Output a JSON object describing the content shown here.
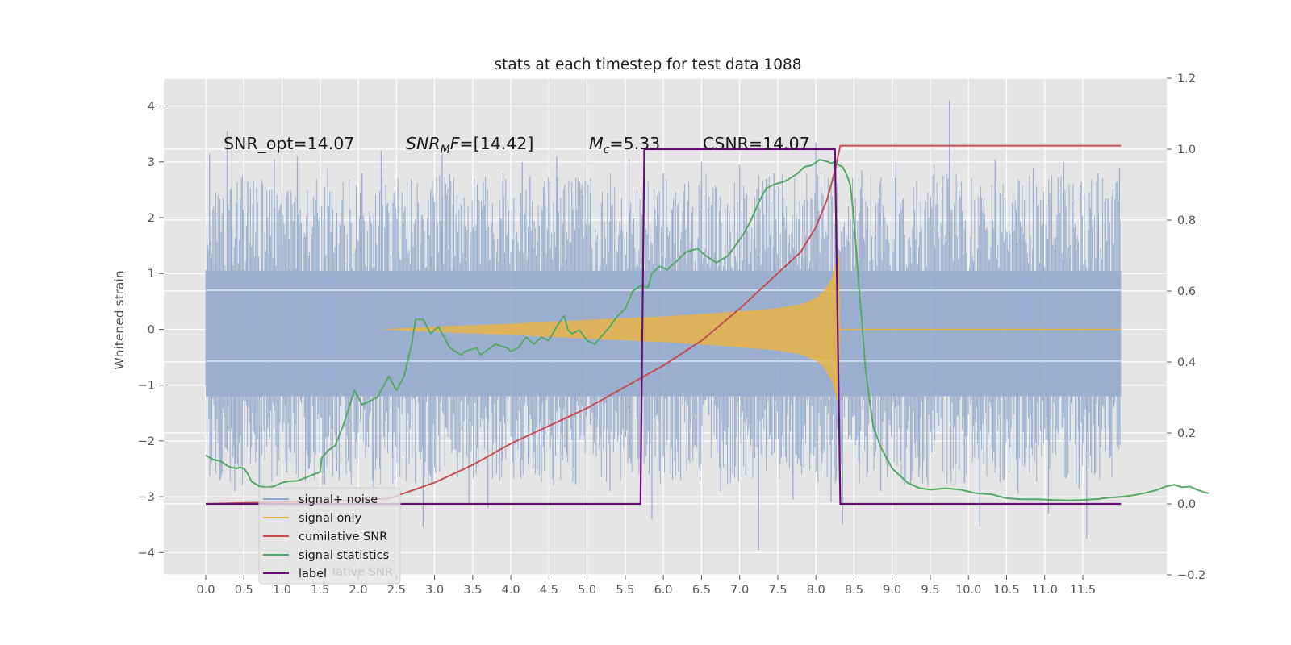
{
  "chart_data": {
    "type": "line",
    "title": "stats at each timestep for test data 1088",
    "ylabel": "Whitened strain",
    "xlim": [
      -0.55,
      12.6
    ],
    "ylim": [
      -4.4,
      4.5
    ],
    "y2lim": [
      -0.2,
      1.2
    ],
    "x_ticks": [
      "0.0",
      "0.5",
      "1.0",
      "1.5",
      "2.0",
      "2.5",
      "3.0",
      "3.5",
      "4.0",
      "4.5",
      "5.0",
      "5.5",
      "6.0",
      "6.5",
      "7.0",
      "7.5",
      "8.0",
      "8.5",
      "9.0",
      "9.5",
      "10.0",
      "10.5",
      "11.0",
      "11.5"
    ],
    "y_ticks": [
      "4",
      "3",
      "2",
      "1",
      "0",
      "−1",
      "−2",
      "−3",
      "−4"
    ],
    "y2_ticks": [
      "1.2",
      "1.0",
      "0.8",
      "0.6",
      "0.4",
      "0.2",
      "0.0",
      "−0.2"
    ],
    "grid": true,
    "legend_position": "lower-left",
    "colors": {
      "background": "#e5e5e5",
      "grid": "#ffffff",
      "noise": "#8fa6cc",
      "signal": "#e8b445",
      "cumulative_snr": "#c44e52",
      "signal_statistics": "#55a868",
      "label": "#6a0f7a"
    },
    "annotations": [
      {
        "text": "SNR_opt=14.07"
      },
      {
        "text_main": "SNR",
        "text_sub": "M",
        "text_rest": "F=[14.42]"
      },
      {
        "text_main": "M",
        "text_sub": "c",
        "text_rest": "=5.33"
      },
      {
        "text": "CSNR=14.07"
      }
    ],
    "noise_spikes": [
      [
        0.05,
        3.15
      ],
      [
        0.2,
        -2.6
      ],
      [
        0.28,
        3.55
      ],
      [
        0.38,
        -2.9
      ],
      [
        0.55,
        2.65
      ],
      [
        0.7,
        -2.85
      ],
      [
        0.9,
        3.05
      ],
      [
        1.05,
        -2.4
      ],
      [
        1.2,
        3.1
      ],
      [
        1.35,
        -2.5
      ],
      [
        1.6,
        2.9
      ],
      [
        1.75,
        -2.7
      ],
      [
        2.05,
        2.8
      ],
      [
        2.2,
        -3.05
      ],
      [
        2.3,
        3.2
      ],
      [
        2.45,
        -2.3
      ],
      [
        2.85,
        -3.55
      ],
      [
        2.95,
        2.5
      ],
      [
        3.1,
        3.15
      ],
      [
        3.3,
        -2.65
      ],
      [
        3.45,
        -3.15
      ],
      [
        3.7,
        -3.2
      ],
      [
        3.9,
        2.8
      ],
      [
        4.15,
        3.0
      ],
      [
        4.4,
        -2.6
      ],
      [
        4.6,
        3.1
      ],
      [
        4.85,
        -2.75
      ],
      [
        5.05,
        2.7
      ],
      [
        5.3,
        -2.9
      ],
      [
        5.55,
        3.05
      ],
      [
        5.85,
        -3.4
      ],
      [
        6.0,
        2.8
      ],
      [
        6.2,
        -2.55
      ],
      [
        6.5,
        3.0
      ],
      [
        6.75,
        -2.9
      ],
      [
        7.0,
        2.95
      ],
      [
        7.25,
        -3.95
      ],
      [
        7.45,
        2.8
      ],
      [
        7.7,
        -3.05
      ],
      [
        8.0,
        3.35
      ],
      [
        8.2,
        -3.1
      ],
      [
        8.35,
        -3.5
      ],
      [
        8.6,
        2.85
      ],
      [
        8.85,
        -2.9
      ],
      [
        9.05,
        3.0
      ],
      [
        9.35,
        -2.65
      ],
      [
        9.55,
        2.95
      ],
      [
        9.75,
        4.1
      ],
      [
        9.95,
        -2.75
      ],
      [
        10.15,
        -3.55
      ],
      [
        10.35,
        3.05
      ],
      [
        10.65,
        -2.95
      ],
      [
        10.85,
        2.9
      ],
      [
        11.05,
        -3.3
      ],
      [
        11.25,
        3.0
      ],
      [
        11.45,
        -2.85
      ],
      [
        11.55,
        -3.75
      ],
      [
        11.7,
        2.8
      ],
      [
        11.85,
        -2.3
      ],
      [
        11.98,
        2.9
      ]
    ],
    "signal_envelope": [
      [
        2.3,
        0.0
      ],
      [
        3.0,
        0.05
      ],
      [
        4.0,
        0.1
      ],
      [
        5.0,
        0.17
      ],
      [
        6.0,
        0.23
      ],
      [
        7.0,
        0.32
      ],
      [
        7.5,
        0.38
      ],
      [
        7.8,
        0.45
      ],
      [
        8.0,
        0.56
      ],
      [
        8.1,
        0.68
      ],
      [
        8.2,
        0.9
      ],
      [
        8.25,
        1.15
      ],
      [
        8.3,
        1.35
      ],
      [
        8.32,
        0.0
      ]
    ],
    "cumulative_snr": [
      [
        0.0,
        0.0
      ],
      [
        1.0,
        0.005
      ],
      [
        2.0,
        0.01
      ],
      [
        2.4,
        0.015
      ],
      [
        3.0,
        0.06
      ],
      [
        3.5,
        0.11
      ],
      [
        4.0,
        0.17
      ],
      [
        4.5,
        0.22
      ],
      [
        5.0,
        0.27
      ],
      [
        5.5,
        0.33
      ],
      [
        6.0,
        0.39
      ],
      [
        6.5,
        0.46
      ],
      [
        7.0,
        0.55
      ],
      [
        7.5,
        0.65
      ],
      [
        7.8,
        0.71
      ],
      [
        8.0,
        0.78
      ],
      [
        8.15,
        0.86
      ],
      [
        8.25,
        0.94
      ],
      [
        8.32,
        1.01
      ],
      [
        12.0,
        1.01
      ]
    ],
    "signal_statistics": [
      [
        0.0,
        0.137
      ],
      [
        0.1,
        0.125
      ],
      [
        0.2,
        0.12
      ],
      [
        0.3,
        0.105
      ],
      [
        0.4,
        0.1
      ],
      [
        0.45,
        0.103
      ],
      [
        0.5,
        0.1
      ],
      [
        0.55,
        0.085
      ],
      [
        0.6,
        0.063
      ],
      [
        0.7,
        0.05
      ],
      [
        0.8,
        0.047
      ],
      [
        0.9,
        0.05
      ],
      [
        1.0,
        0.06
      ],
      [
        1.1,
        0.064
      ],
      [
        1.2,
        0.065
      ],
      [
        1.3,
        0.073
      ],
      [
        1.4,
        0.082
      ],
      [
        1.5,
        0.09
      ],
      [
        1.52,
        0.13
      ],
      [
        1.6,
        0.15
      ],
      [
        1.7,
        0.165
      ],
      [
        1.8,
        0.22
      ],
      [
        1.95,
        0.32
      ],
      [
        2.05,
        0.28
      ],
      [
        2.15,
        0.29
      ],
      [
        2.25,
        0.3
      ],
      [
        2.4,
        0.36
      ],
      [
        2.5,
        0.32
      ],
      [
        2.6,
        0.36
      ],
      [
        2.7,
        0.45
      ],
      [
        2.75,
        0.52
      ],
      [
        2.85,
        0.52
      ],
      [
        2.95,
        0.48
      ],
      [
        3.05,
        0.5
      ],
      [
        3.2,
        0.44
      ],
      [
        3.35,
        0.42
      ],
      [
        3.4,
        0.43
      ],
      [
        3.55,
        0.44
      ],
      [
        3.6,
        0.42
      ],
      [
        3.8,
        0.45
      ],
      [
        3.95,
        0.44
      ],
      [
        4.0,
        0.43
      ],
      [
        4.1,
        0.44
      ],
      [
        4.2,
        0.47
      ],
      [
        4.3,
        0.45
      ],
      [
        4.4,
        0.47
      ],
      [
        4.5,
        0.46
      ],
      [
        4.6,
        0.5
      ],
      [
        4.7,
        0.53
      ],
      [
        4.75,
        0.49
      ],
      [
        4.8,
        0.48
      ],
      [
        4.9,
        0.49
      ],
      [
        5.0,
        0.46
      ],
      [
        5.1,
        0.45
      ],
      [
        5.3,
        0.5
      ],
      [
        5.4,
        0.53
      ],
      [
        5.5,
        0.55
      ],
      [
        5.6,
        0.6
      ],
      [
        5.7,
        0.615
      ],
      [
        5.8,
        0.61
      ],
      [
        5.85,
        0.65
      ],
      [
        5.95,
        0.67
      ],
      [
        6.05,
        0.66
      ],
      [
        6.15,
        0.68
      ],
      [
        6.3,
        0.71
      ],
      [
        6.45,
        0.72
      ],
      [
        6.55,
        0.7
      ],
      [
        6.7,
        0.68
      ],
      [
        6.85,
        0.7
      ],
      [
        6.95,
        0.73
      ],
      [
        7.05,
        0.76
      ],
      [
        7.15,
        0.8
      ],
      [
        7.25,
        0.85
      ],
      [
        7.35,
        0.89
      ],
      [
        7.45,
        0.9
      ],
      [
        7.6,
        0.91
      ],
      [
        7.75,
        0.93
      ],
      [
        7.85,
        0.95
      ],
      [
        7.95,
        0.955
      ],
      [
        8.05,
        0.97
      ],
      [
        8.15,
        0.965
      ],
      [
        8.2,
        0.96
      ],
      [
        8.25,
        0.965
      ],
      [
        8.3,
        0.955
      ],
      [
        8.35,
        0.95
      ],
      [
        8.4,
        0.93
      ],
      [
        8.45,
        0.9
      ],
      [
        8.5,
        0.8
      ],
      [
        8.55,
        0.65
      ],
      [
        8.6,
        0.52
      ],
      [
        8.65,
        0.38
      ],
      [
        8.7,
        0.3
      ],
      [
        8.75,
        0.22
      ],
      [
        8.85,
        0.16
      ],
      [
        9.0,
        0.1
      ],
      [
        9.2,
        0.06
      ],
      [
        9.35,
        0.045
      ],
      [
        9.5,
        0.04
      ],
      [
        9.7,
        0.044
      ],
      [
        9.9,
        0.04
      ],
      [
        10.1,
        0.03
      ],
      [
        10.3,
        0.027
      ],
      [
        10.5,
        0.016
      ],
      [
        10.7,
        0.013
      ],
      [
        10.9,
        0.013
      ],
      [
        11.1,
        0.011
      ],
      [
        11.3,
        0.01
      ],
      [
        11.5,
        0.011
      ],
      [
        11.7,
        0.014
      ],
      [
        11.85,
        0.018
      ],
      [
        12.0,
        0.02
      ],
      [
        12.15,
        0.024
      ],
      [
        12.3,
        0.03
      ],
      [
        12.45,
        0.038
      ],
      [
        12.6,
        0.05
      ],
      [
        12.7,
        0.054
      ],
      [
        12.8,
        0.047
      ],
      [
        12.9,
        0.049
      ],
      [
        13.0,
        0.04
      ],
      [
        13.1,
        0.032
      ],
      [
        13.15,
        0.03
      ]
    ],
    "label_values": [
      [
        0.0,
        0.0
      ],
      [
        5.7,
        0.0
      ],
      [
        5.75,
        1.0
      ],
      [
        8.25,
        1.0
      ],
      [
        8.32,
        0.0
      ],
      [
        12.0,
        0.0
      ]
    ],
    "legend": {
      "items": [
        {
          "label": "signal+ noise",
          "color": "#8fa6cc"
        },
        {
          "label": "signal only",
          "color": "#e8b445"
        },
        {
          "label": "cumilative SNR",
          "color": "#c44e52"
        },
        {
          "label": "signal statistics",
          "color": "#55a868"
        },
        {
          "label": "label",
          "color": "#6a0f7a"
        }
      ],
      "ghost_text": "lative SNR"
    }
  }
}
